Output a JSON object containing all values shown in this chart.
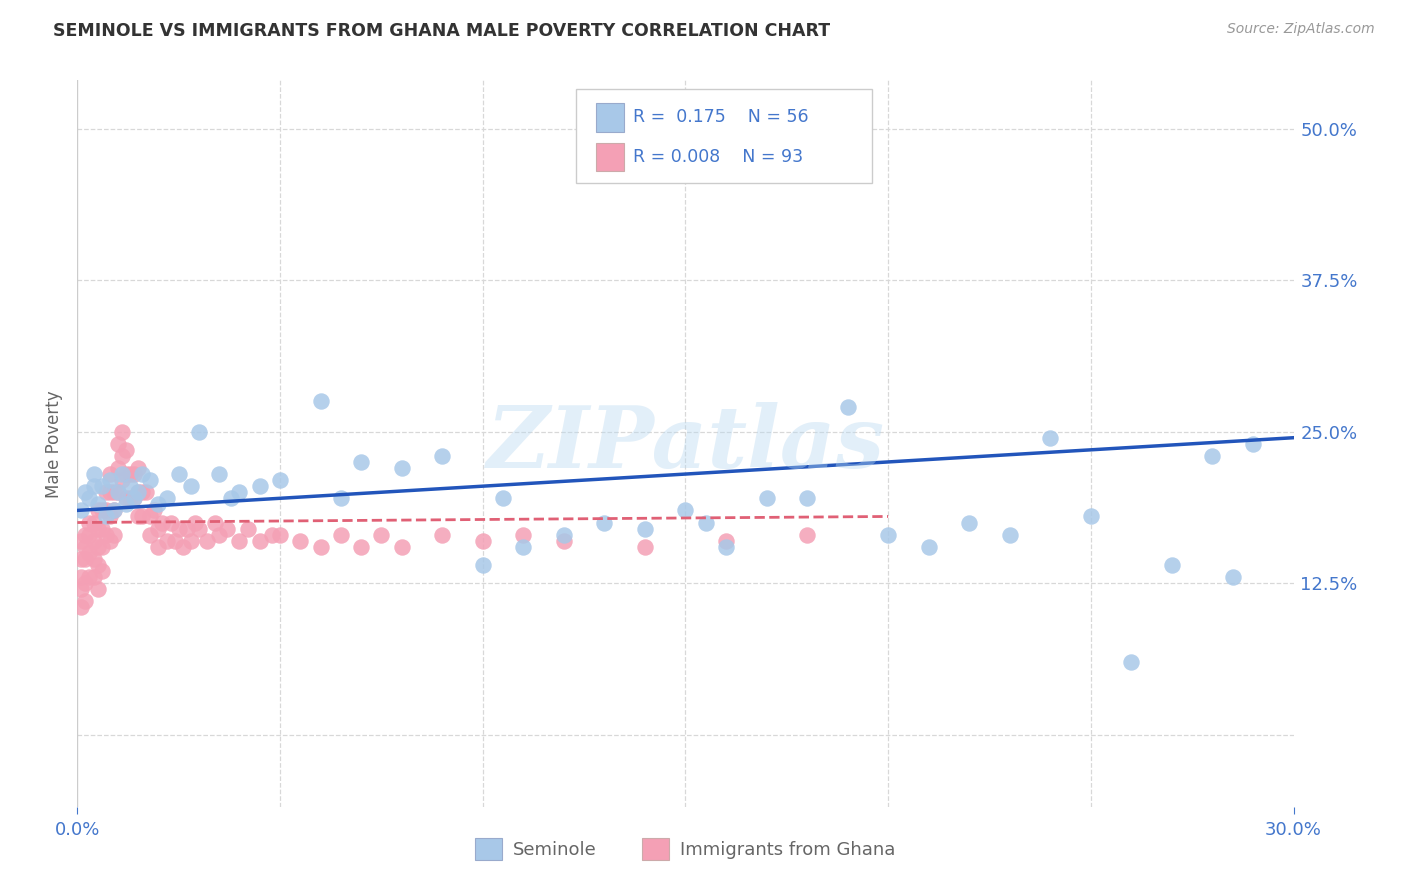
{
  "title": "SEMINOLE VS IMMIGRANTS FROM GHANA MALE POVERTY CORRELATION CHART",
  "source": "Source: ZipAtlas.com",
  "ylabel": "Male Poverty",
  "xlim": [
    0.0,
    0.3
  ],
  "ylim": [
    -0.06,
    0.54
  ],
  "seminole_color": "#a8c8e8",
  "ghana_color": "#f4a0b5",
  "seminole_line_color": "#2255bb",
  "ghana_line_color": "#e06075",
  "legend_seminole": "Seminole",
  "legend_ghana": "Immigrants from Ghana",
  "watermark": "ZIPatlas",
  "R_seminole": 0.175,
  "N_seminole": 56,
  "R_ghana": 0.008,
  "N_ghana": 93,
  "background_color": "#ffffff",
  "grid_color": "#d8d8d8",
  "title_color": "#333333",
  "source_color": "#999999",
  "axis_color": "#4477cc",
  "label_color": "#666666",
  "seminole_x": [
    0.001,
    0.002,
    0.003,
    0.004,
    0.004,
    0.005,
    0.006,
    0.007,
    0.008,
    0.009,
    0.01,
    0.011,
    0.012,
    0.013,
    0.014,
    0.015,
    0.016,
    0.018,
    0.02,
    0.022,
    0.025,
    0.028,
    0.03,
    0.035,
    0.038,
    0.04,
    0.045,
    0.05,
    0.06,
    0.065,
    0.07,
    0.08,
    0.09,
    0.1,
    0.105,
    0.11,
    0.12,
    0.13,
    0.14,
    0.15,
    0.155,
    0.16,
    0.17,
    0.18,
    0.19,
    0.2,
    0.21,
    0.22,
    0.23,
    0.24,
    0.25,
    0.26,
    0.27,
    0.28,
    0.285,
    0.29
  ],
  "seminole_y": [
    0.185,
    0.2,
    0.195,
    0.215,
    0.205,
    0.19,
    0.205,
    0.18,
    0.21,
    0.185,
    0.2,
    0.215,
    0.19,
    0.205,
    0.195,
    0.2,
    0.215,
    0.21,
    0.19,
    0.195,
    0.215,
    0.205,
    0.25,
    0.215,
    0.195,
    0.2,
    0.205,
    0.21,
    0.275,
    0.195,
    0.225,
    0.22,
    0.23,
    0.14,
    0.195,
    0.155,
    0.165,
    0.175,
    0.17,
    0.185,
    0.175,
    0.155,
    0.195,
    0.195,
    0.27,
    0.165,
    0.155,
    0.175,
    0.165,
    0.245,
    0.18,
    0.06,
    0.14,
    0.23,
    0.13,
    0.24
  ],
  "ghana_x": [
    0.001,
    0.001,
    0.001,
    0.001,
    0.001,
    0.002,
    0.002,
    0.002,
    0.002,
    0.002,
    0.003,
    0.003,
    0.003,
    0.003,
    0.004,
    0.004,
    0.004,
    0.004,
    0.005,
    0.005,
    0.005,
    0.005,
    0.005,
    0.006,
    0.006,
    0.006,
    0.006,
    0.007,
    0.007,
    0.007,
    0.008,
    0.008,
    0.008,
    0.008,
    0.009,
    0.009,
    0.009,
    0.01,
    0.01,
    0.01,
    0.011,
    0.011,
    0.011,
    0.012,
    0.012,
    0.012,
    0.013,
    0.013,
    0.014,
    0.014,
    0.015,
    0.015,
    0.015,
    0.016,
    0.016,
    0.017,
    0.018,
    0.018,
    0.019,
    0.02,
    0.02,
    0.021,
    0.022,
    0.023,
    0.024,
    0.025,
    0.026,
    0.027,
    0.028,
    0.029,
    0.03,
    0.032,
    0.034,
    0.035,
    0.037,
    0.04,
    0.042,
    0.045,
    0.048,
    0.05,
    0.055,
    0.06,
    0.065,
    0.07,
    0.075,
    0.08,
    0.09,
    0.1,
    0.11,
    0.12,
    0.14,
    0.16,
    0.18
  ],
  "ghana_y": [
    0.16,
    0.145,
    0.13,
    0.12,
    0.105,
    0.165,
    0.155,
    0.145,
    0.125,
    0.11,
    0.175,
    0.165,
    0.15,
    0.13,
    0.175,
    0.16,
    0.145,
    0.13,
    0.185,
    0.17,
    0.155,
    0.14,
    0.12,
    0.185,
    0.17,
    0.155,
    0.135,
    0.2,
    0.185,
    0.165,
    0.215,
    0.2,
    0.18,
    0.16,
    0.2,
    0.185,
    0.165,
    0.24,
    0.22,
    0.2,
    0.25,
    0.23,
    0.21,
    0.235,
    0.215,
    0.195,
    0.215,
    0.195,
    0.215,
    0.195,
    0.22,
    0.2,
    0.18,
    0.2,
    0.18,
    0.2,
    0.18,
    0.165,
    0.185,
    0.17,
    0.155,
    0.175,
    0.16,
    0.175,
    0.16,
    0.17,
    0.155,
    0.17,
    0.16,
    0.175,
    0.17,
    0.16,
    0.175,
    0.165,
    0.17,
    0.16,
    0.17,
    0.16,
    0.165,
    0.165,
    0.16,
    0.155,
    0.165,
    0.155,
    0.165,
    0.155,
    0.165,
    0.16,
    0.165,
    0.16,
    0.155,
    0.16,
    0.165
  ]
}
